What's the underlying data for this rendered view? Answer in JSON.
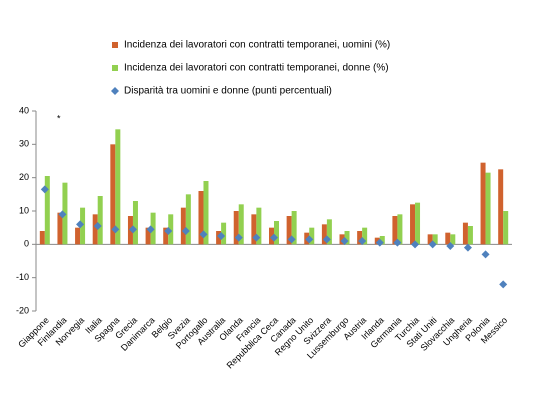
{
  "chart_data": {
    "type": "bar",
    "annotation": "*",
    "categories": [
      "Giappone",
      "Finlandia",
      "Norvegia",
      "Italia",
      "Spagna",
      "Grecia",
      "Danimarca",
      "Belgio",
      "Svezia",
      "Portogallo",
      "Australia",
      "Olanda",
      "Francia",
      "Repubblica Ceca",
      "Canada",
      "Regno Unito",
      "Svizzera",
      "Lussemburgo",
      "Austria",
      "Irlanda",
      "Germania",
      "Turchia",
      "Stati Uniti",
      "Slovacchia",
      "Ungheria",
      "Polonia",
      "Messico"
    ],
    "series": [
      {
        "name": "Incidenza dei lavoratori con contratti temporanei, uomini (%)",
        "color": "#d0622e",
        "mark": "bar",
        "values": [
          4,
          9.5,
          5,
          9,
          30,
          8.5,
          5,
          5,
          11,
          16,
          4,
          10,
          9,
          5,
          8.5,
          3.5,
          6,
          3,
          4,
          2,
          8.5,
          12,
          3,
          3.5,
          6.5,
          24.5,
          22.5
        ]
      },
      {
        "name": "Incidenza dei lavoratori con contratti temporanei, donne (%)",
        "color": "#92d050",
        "mark": "bar",
        "values": [
          20.5,
          18.5,
          11,
          14.5,
          34.5,
          13,
          9.5,
          9,
          15,
          19,
          6.5,
          12,
          11,
          7,
          10,
          5,
          7.5,
          4,
          5,
          2.5,
          9,
          12.5,
          3,
          3,
          5.5,
          21.5,
          10
        ]
      },
      {
        "name": "Disparità tra uomini e donne (punti percentuali)",
        "color": "#4f81bd",
        "mark": "diamond",
        "values": [
          16.5,
          9,
          6,
          5.5,
          4.5,
          4.5,
          4.5,
          4,
          4,
          3,
          2.5,
          2,
          2,
          2,
          1.5,
          1.5,
          1.5,
          1,
          1,
          0.5,
          0.5,
          0,
          0,
          -0.5,
          -1,
          -3,
          -12
        ]
      }
    ],
    "ylim": [
      -20,
      40
    ],
    "yticks": [
      -20,
      -10,
      0,
      10,
      20,
      30,
      40
    ],
    "grid": false
  }
}
